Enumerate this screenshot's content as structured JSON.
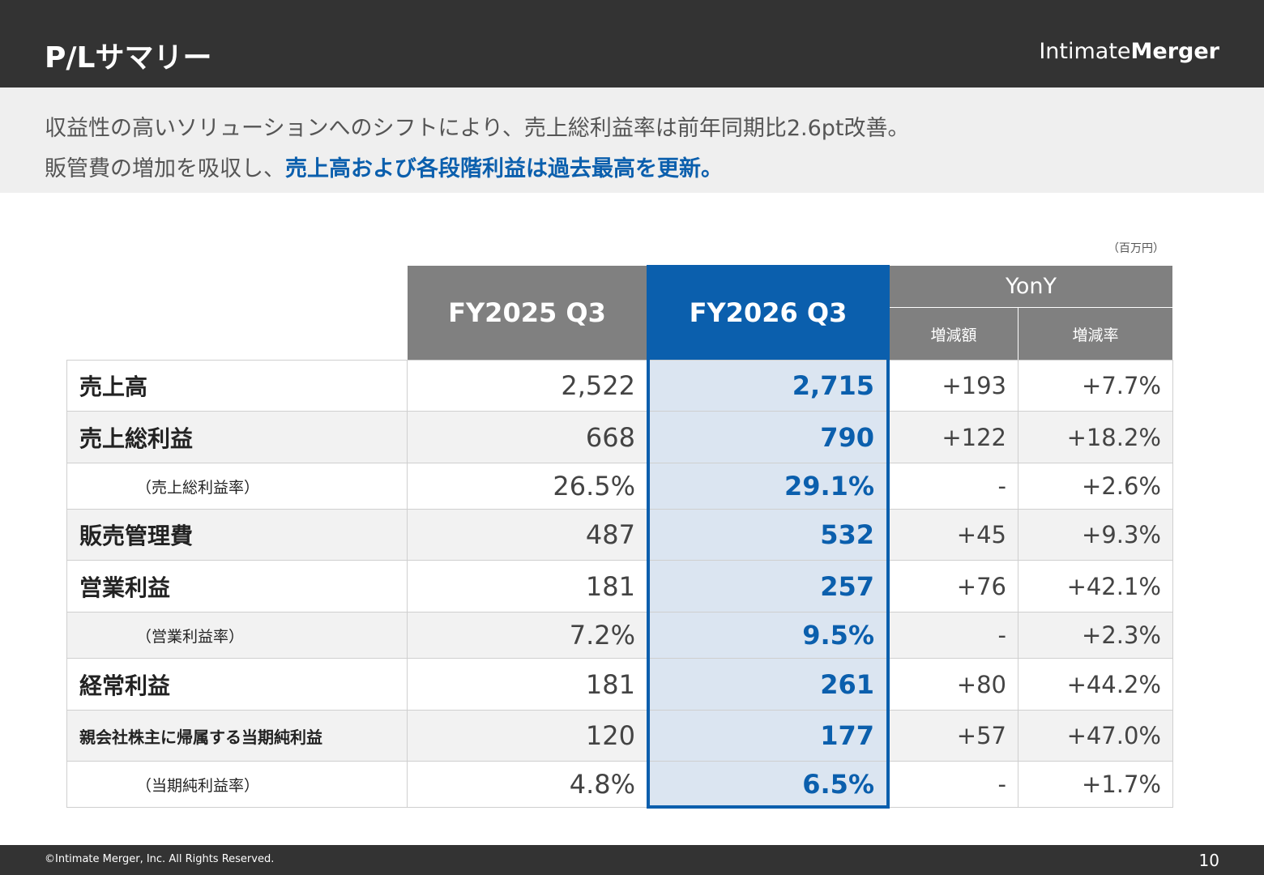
{
  "header": {
    "title": "P/Lサマリー",
    "logo": {
      "regular": "Intimate",
      "bold": "Merger"
    }
  },
  "summary": {
    "line1": "収益性の高いソリューションへのシフトにより、売上総利益率は前年同期比2.6pt改善。",
    "line2": {
      "regular": "販管費の増加を吸収し、",
      "highlight": "売上高および各段階利益は過去最高を更新。"
    }
  },
  "table": {
    "unit": "（百万円）",
    "columns": [
      "FY2025 Q3",
      "FY2026 Q3"
    ],
    "group": "YonY",
    "subcolumns": [
      "増減額",
      "増減率"
    ],
    "rows": [
      [
        "売上高",
        "2,522",
        "2,715",
        "+193",
        "+7.7%"
      ],
      [
        "売上総利益",
        "668",
        "790",
        "+122",
        "+18.2%"
      ],
      [
        "（売上総利益率）",
        "26.5%",
        "29.1%",
        "-",
        "+2.6%"
      ],
      [
        "販売管理費",
        "487",
        "532",
        "+45",
        "+9.3%"
      ],
      [
        "営業利益",
        "181",
        "257",
        "+76",
        "+42.1%"
      ],
      [
        "（営業利益率）",
        "7.2%",
        "9.5%",
        "-",
        "+2.3%"
      ],
      [
        "経常利益",
        "181",
        "261",
        "+80",
        "+44.2%"
      ],
      [
        "親会社株主に帰属する当期純利益",
        "120",
        "177",
        "+57",
        "+47.0%"
      ],
      [
        "（当期純利益率）",
        "4.8%",
        "6.5%",
        "-",
        "+1.7%"
      ]
    ]
  },
  "footer": {
    "copyright": "©Intimate Merger, Inc. All Rights Reserved.",
    "page": "10"
  }
}
